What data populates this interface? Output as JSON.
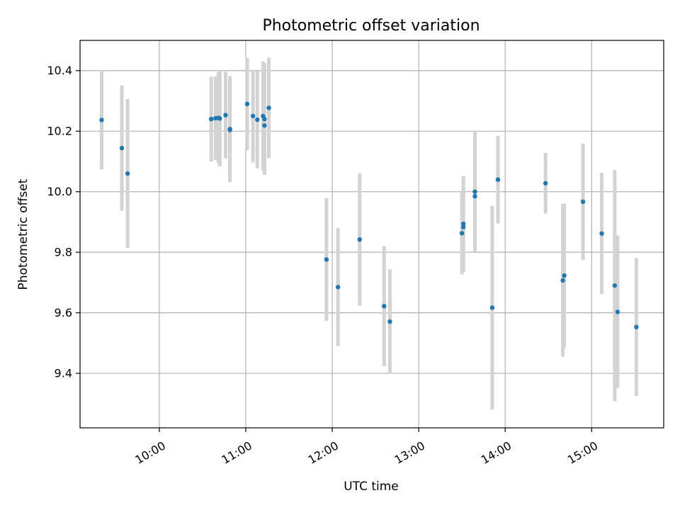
{
  "chart_data": {
    "type": "scatter",
    "title": "Photometric offset variation",
    "xlabel": "UTC time",
    "ylabel": "Photometric offset",
    "xlim": [
      "09:05",
      "15:50"
    ],
    "ylim": [
      9.22,
      10.5
    ],
    "xticks": [
      "10:00",
      "11:00",
      "12:00",
      "13:00",
      "14:00",
      "15:00"
    ],
    "yticks": [
      9.4,
      9.6,
      9.8,
      10.0,
      10.2,
      10.4
    ],
    "ytick_labels": [
      "9.4",
      "9.6",
      "9.8",
      "10.0",
      "10.2",
      "10.4"
    ],
    "grid": true,
    "colors": {
      "points": "#1f77b4",
      "errorbars": "#d3d3d3",
      "grid": "#b0b0b0"
    },
    "points": [
      {
        "x": "09:20",
        "y": 10.237,
        "err": 0.163
      },
      {
        "x": "09:34",
        "y": 10.144,
        "err": 0.207
      },
      {
        "x": "09:38",
        "y": 10.06,
        "err": 0.246
      },
      {
        "x": "10:36",
        "y": 10.24,
        "err": 0.14
      },
      {
        "x": "10:39",
        "y": 10.243,
        "err": 0.138
      },
      {
        "x": "10:41",
        "y": 10.244,
        "err": 0.15
      },
      {
        "x": "10:42",
        "y": 10.242,
        "err": 0.158
      },
      {
        "x": "10:46",
        "y": 10.253,
        "err": 0.143
      },
      {
        "x": "10:49",
        "y": 10.204,
        "err": 0.173
      },
      {
        "x": "10:49",
        "y": 10.207,
        "err": 0.175
      },
      {
        "x": "11:01",
        "y": 10.29,
        "err": 0.152
      },
      {
        "x": "11:05",
        "y": 10.25,
        "err": 0.153
      },
      {
        "x": "11:08",
        "y": 10.238,
        "err": 0.16
      },
      {
        "x": "11:12",
        "y": 10.25,
        "err": 0.18
      },
      {
        "x": "11:13",
        "y": 10.24,
        "err": 0.185
      },
      {
        "x": "11:13",
        "y": 10.219,
        "err": 0.16
      },
      {
        "x": "11:16",
        "y": 10.277,
        "err": 0.166
      },
      {
        "x": "11:56",
        "y": 9.776,
        "err": 0.203
      },
      {
        "x": "12:04",
        "y": 9.685,
        "err": 0.195
      },
      {
        "x": "12:19",
        "y": 9.842,
        "err": 0.218
      },
      {
        "x": "12:36",
        "y": 9.622,
        "err": 0.198
      },
      {
        "x": "12:40",
        "y": 9.571,
        "err": 0.172
      },
      {
        "x": "13:30",
        "y": 9.863,
        "err": 0.136
      },
      {
        "x": "13:31",
        "y": 9.894,
        "err": 0.158
      },
      {
        "x": "13:31",
        "y": 9.883,
        "err": 0.148
      },
      {
        "x": "13:39",
        "y": 10.0,
        "err": 0.2
      },
      {
        "x": "13:39",
        "y": 9.985,
        "err": 0.135
      },
      {
        "x": "13:51",
        "y": 9.617,
        "err": 0.337
      },
      {
        "x": "13:55",
        "y": 10.04,
        "err": 0.145
      },
      {
        "x": "14:28",
        "y": 10.028,
        "err": 0.1
      },
      {
        "x": "14:40",
        "y": 9.707,
        "err": 0.252
      },
      {
        "x": "14:41",
        "y": 9.723,
        "err": 0.238
      },
      {
        "x": "14:54",
        "y": 9.967,
        "err": 0.192
      },
      {
        "x": "15:07",
        "y": 9.862,
        "err": 0.2
      },
      {
        "x": "15:16",
        "y": 9.69,
        "err": 0.382
      },
      {
        "x": "15:18",
        "y": 9.603,
        "err": 0.252
      },
      {
        "x": "15:31",
        "y": 9.553,
        "err": 0.228
      }
    ]
  }
}
